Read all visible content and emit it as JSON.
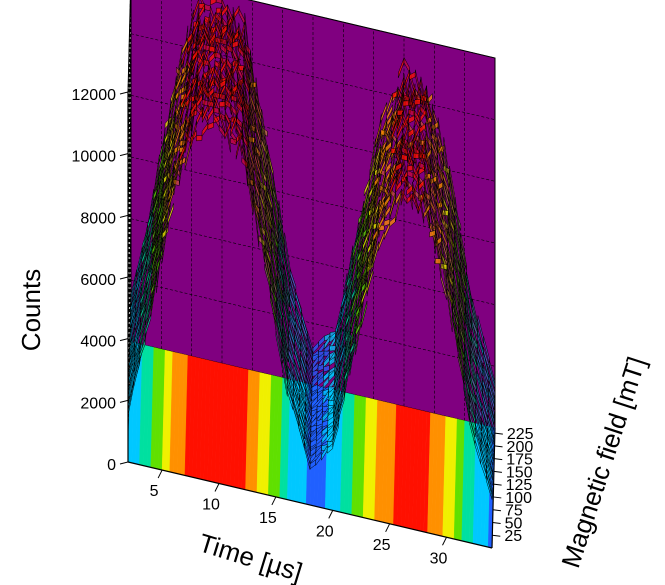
{
  "chart_data": {
    "type": "surface3d",
    "title": "",
    "xlabel": "Time [µs]",
    "ylabel": "Magnetic field [mT]",
    "zlabel": "Counts",
    "xlim": [
      2,
      34
    ],
    "ylim": [
      0,
      235
    ],
    "zlim": [
      0,
      12000
    ],
    "x_ticks": [
      5,
      10,
      15,
      20,
      25,
      30
    ],
    "y_ticks": [
      25,
      50,
      75,
      100,
      125,
      150,
      175,
      200,
      225
    ],
    "z_ticks": [
      0,
      2000,
      4000,
      6000,
      8000,
      10000,
      12000
    ],
    "colormap": [
      "#2060ff",
      "#00c8ff",
      "#00e0a0",
      "#60e000",
      "#f0f000",
      "#ff9000",
      "#ff1000"
    ],
    "wall_colors": {
      "left": "#c8c8c8",
      "back": "#800080"
    },
    "grid": true,
    "series": [
      {
        "x": [
          2,
          4,
          6,
          8,
          10,
          12,
          14,
          16,
          18,
          20,
          22,
          24,
          26,
          28,
          30,
          32,
          34
        ],
        "values": [
          1500,
          5000,
          9000,
          11500,
          11800,
          11000,
          7500,
          3500,
          1200,
          2000,
          5500,
          9000,
          10800,
          10500,
          8000,
          4000,
          1500
        ]
      }
    ]
  }
}
